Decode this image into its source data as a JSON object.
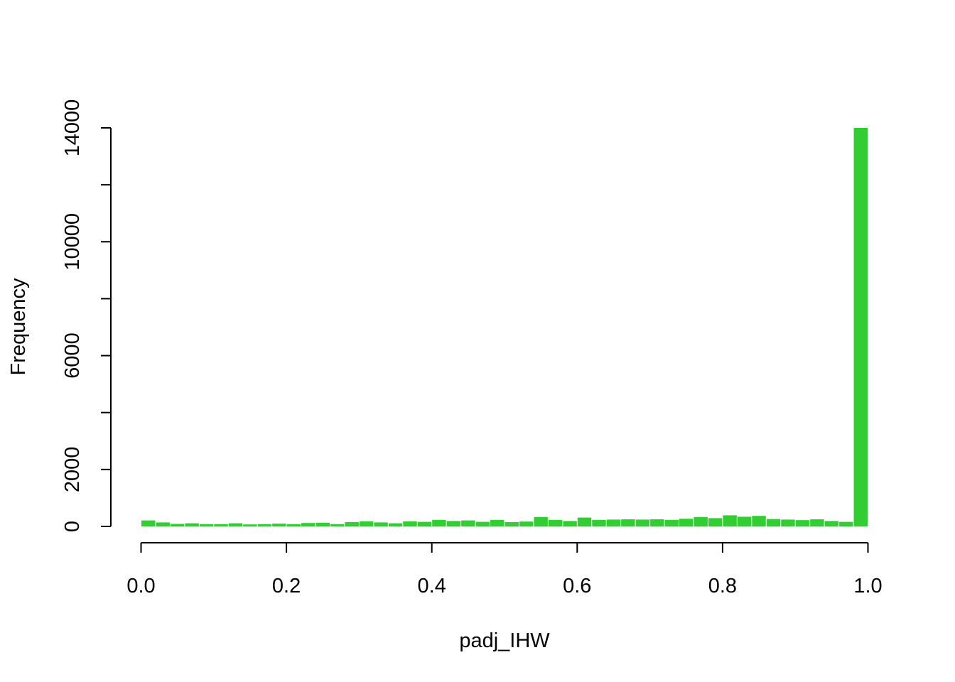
{
  "chart_data": {
    "type": "bar",
    "title": "",
    "xlabel": "padj_IHW",
    "ylabel": "Frequency",
    "bar_color": "#32CD32",
    "grid": false,
    "legend": "none",
    "xlim": [
      0,
      1
    ],
    "ylim": [
      0,
      14000
    ],
    "bin_width": 0.02,
    "x_ticks": [
      0.0,
      0.2,
      0.4,
      0.6,
      0.8,
      1.0
    ],
    "x_tick_labels": [
      "0.0",
      "0.2",
      "0.4",
      "0.6",
      "0.8",
      "1.0"
    ],
    "y_ticks": [
      0,
      2000,
      4000,
      6000,
      8000,
      10000,
      12000,
      14000
    ],
    "y_tick_labels": [
      "0",
      "2000",
      "",
      "6000",
      "",
      "10000",
      "",
      "14000"
    ],
    "bin_starts": [
      0.0,
      0.02,
      0.04,
      0.06,
      0.08,
      0.1,
      0.12,
      0.14,
      0.16,
      0.18,
      0.2,
      0.22,
      0.24,
      0.26,
      0.28,
      0.3,
      0.32,
      0.34,
      0.36,
      0.38,
      0.4,
      0.42,
      0.44,
      0.46,
      0.48,
      0.5,
      0.52,
      0.54,
      0.56,
      0.58,
      0.6,
      0.62,
      0.64,
      0.66,
      0.68,
      0.7,
      0.72,
      0.74,
      0.76,
      0.78,
      0.8,
      0.82,
      0.84,
      0.86,
      0.88,
      0.9,
      0.92,
      0.94,
      0.96,
      0.98
    ],
    "values": [
      210,
      140,
      90,
      110,
      80,
      80,
      110,
      70,
      80,
      100,
      80,
      120,
      130,
      80,
      150,
      180,
      140,
      110,
      180,
      160,
      230,
      190,
      210,
      160,
      230,
      150,
      170,
      330,
      230,
      190,
      310,
      230,
      240,
      250,
      240,
      250,
      230,
      270,
      330,
      290,
      390,
      340,
      370,
      260,
      240,
      220,
      250,
      190,
      160,
      14000
    ]
  }
}
